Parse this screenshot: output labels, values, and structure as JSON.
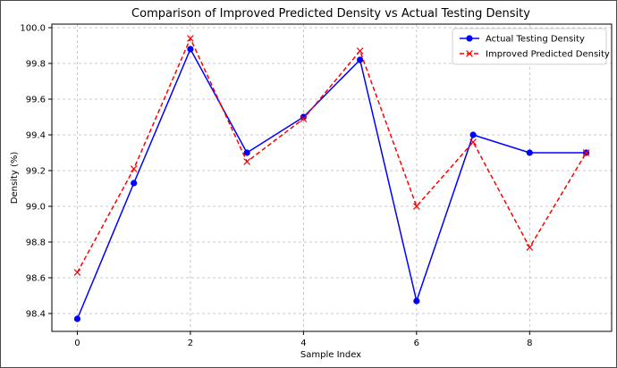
{
  "chart_data": {
    "type": "line",
    "title": "Comparison of Improved Predicted Density vs Actual Testing Density",
    "xlabel": "Sample Index",
    "ylabel": "Density (%)",
    "x": [
      0,
      1,
      2,
      3,
      4,
      5,
      6,
      7,
      8,
      9
    ],
    "xlim": [
      -0.45,
      9.45
    ],
    "ylim": [
      98.3,
      100.02
    ],
    "x_ticks": [
      0,
      2,
      4,
      6,
      8
    ],
    "x_tick_labels": [
      "0",
      "2",
      "4",
      "6",
      "8"
    ],
    "y_ticks": [
      98.4,
      98.6,
      98.8,
      99.0,
      99.2,
      99.4,
      99.6,
      99.8,
      100.0
    ],
    "y_tick_labels": [
      "98.4",
      "98.6",
      "98.8",
      "99.0",
      "99.2",
      "99.4",
      "99.6",
      "99.8",
      "100.0"
    ],
    "grid": true,
    "grid_style": "dashed",
    "legend_position": "top-right",
    "series": [
      {
        "name": "Actual Testing Density",
        "color": "#0000ff",
        "line_style": "solid",
        "marker": "circle",
        "values": [
          98.37,
          99.13,
          99.88,
          99.3,
          99.5,
          99.82,
          98.47,
          99.4,
          99.3,
          99.3
        ]
      },
      {
        "name": "Improved Predicted Density",
        "color": "#ff0000",
        "line_style": "dashed",
        "marker": "x",
        "values": [
          98.63,
          99.21,
          99.94,
          99.25,
          99.49,
          99.87,
          99.0,
          99.36,
          98.77,
          99.3
        ]
      }
    ]
  }
}
